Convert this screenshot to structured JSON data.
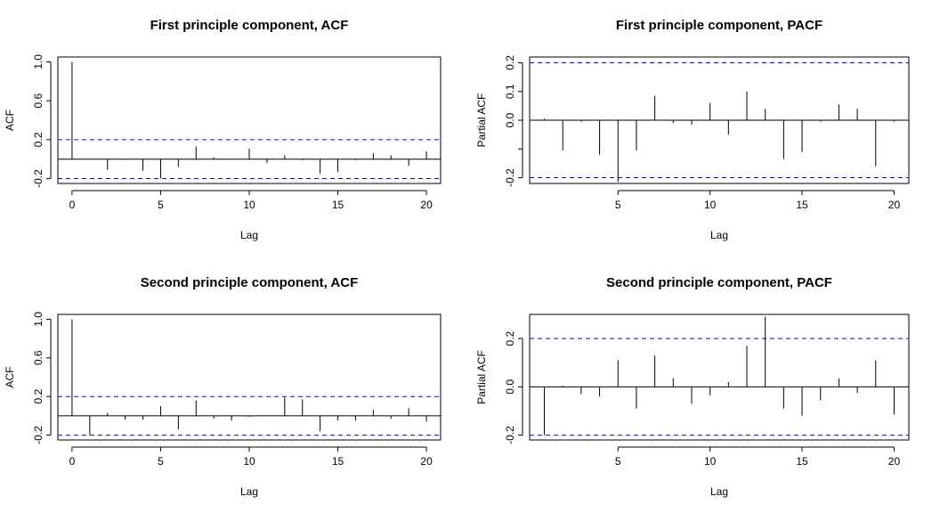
{
  "colors": {
    "bound_blue": "#0000ff",
    "bound_black": "#000000",
    "stem": "#000000"
  },
  "chart_data": [
    {
      "type": "bar",
      "kind": "acf",
      "title": "First principle component, ACF",
      "xlabel": "Lag",
      "ylabel": "ACF",
      "xlim": [
        -0.8,
        20.8
      ],
      "ylim": [
        -0.25,
        1.05
      ],
      "xticks": [
        0,
        5,
        10,
        15,
        20
      ],
      "yticks": [
        -0.2,
        0.2,
        0.6,
        1.0
      ],
      "ytick_labels": [
        "-0.2",
        "0.2",
        "0.6",
        "1.0"
      ],
      "conf_bound": 0.2,
      "bound_color": "blue",
      "lags": [
        0,
        1,
        2,
        3,
        4,
        5,
        6,
        7,
        8,
        9,
        10,
        11,
        12,
        13,
        14,
        15,
        16,
        17,
        18,
        19,
        20
      ],
      "values": [
        1.0,
        0.005,
        -0.11,
        -0.005,
        -0.12,
        -0.2,
        -0.08,
        0.13,
        0.02,
        -0.005,
        0.11,
        -0.04,
        0.04,
        -0.01,
        -0.15,
        -0.13,
        -0.01,
        0.06,
        0.04,
        -0.07,
        0.08
      ]
    },
    {
      "type": "bar",
      "kind": "pacf",
      "title": "First principle component, PACF",
      "xlabel": "Lag",
      "ylabel": "Partial ACF",
      "xlim": [
        0.2,
        20.8
      ],
      "ylim": [
        -0.22,
        0.22
      ],
      "xticks": [
        5,
        10,
        15,
        20
      ],
      "yticks": [
        -0.2,
        -0.1,
        0.0,
        0.1,
        0.2
      ],
      "ytick_labels": [
        "-0.2",
        "",
        "0.0",
        "0.1",
        "0.2"
      ],
      "conf_bound": 0.2,
      "bound_color": "blue",
      "lags": [
        1,
        2,
        3,
        4,
        5,
        6,
        7,
        8,
        9,
        10,
        11,
        12,
        13,
        14,
        15,
        16,
        17,
        18,
        19,
        20
      ],
      "values": [
        0.005,
        -0.105,
        -0.005,
        -0.12,
        -0.215,
        -0.105,
        0.085,
        -0.01,
        -0.015,
        0.06,
        -0.05,
        0.1,
        0.04,
        -0.135,
        -0.11,
        -0.005,
        0.055,
        0.04,
        -0.16,
        -0.005
      ]
    },
    {
      "type": "bar",
      "kind": "acf",
      "title": "Second principle component, ACF",
      "xlabel": "Lag",
      "ylabel": "ACF",
      "xlim": [
        -0.8,
        20.8
      ],
      "ylim": [
        -0.25,
        1.05
      ],
      "xticks": [
        0,
        5,
        10,
        15,
        20
      ],
      "yticks": [
        -0.2,
        0.2,
        0.6,
        1.0
      ],
      "ytick_labels": [
        "-0.2",
        "0.2",
        "0.6",
        "1.0"
      ],
      "conf_bound": 0.2,
      "bound_color": "blue",
      "lags": [
        0,
        1,
        2,
        3,
        4,
        5,
        6,
        7,
        8,
        9,
        10,
        11,
        12,
        13,
        14,
        15,
        16,
        17,
        18,
        19,
        20
      ],
      "values": [
        1.0,
        -0.2,
        0.03,
        -0.04,
        -0.04,
        0.1,
        -0.14,
        0.16,
        -0.03,
        -0.05,
        -0.01,
        0.005,
        0.19,
        0.17,
        -0.16,
        -0.05,
        -0.05,
        0.06,
        -0.03,
        0.08,
        -0.06
      ]
    },
    {
      "type": "bar",
      "kind": "pacf",
      "title": "Second principle component, PACF",
      "xlabel": "Lag",
      "ylabel": "Partial ACF",
      "xlim": [
        0.2,
        20.8
      ],
      "ylim": [
        -0.22,
        0.3
      ],
      "xticks": [
        5,
        10,
        15,
        20
      ],
      "yticks": [
        -0.2,
        0.0,
        0.2
      ],
      "ytick_labels": [
        "-0.2",
        "0.0",
        "0.2"
      ],
      "conf_bound": 0.2,
      "bound_color": "blue",
      "lags": [
        1,
        2,
        3,
        4,
        5,
        6,
        7,
        8,
        9,
        10,
        11,
        12,
        13,
        14,
        15,
        16,
        17,
        18,
        19,
        20
      ],
      "values": [
        -0.2,
        0.005,
        -0.03,
        -0.04,
        0.11,
        -0.09,
        0.13,
        0.035,
        -0.07,
        -0.035,
        0.02,
        0.17,
        0.29,
        -0.09,
        -0.12,
        -0.055,
        0.035,
        -0.025,
        0.11,
        -0.115
      ]
    }
  ]
}
